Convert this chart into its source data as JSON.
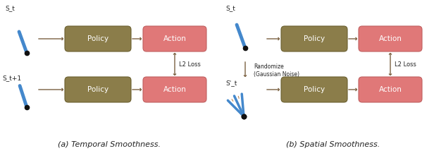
{
  "fig_width": 6.16,
  "fig_height": 2.24,
  "dpi": 100,
  "bg_color": "#ffffff",
  "policy_box_color": "#8B7D4A",
  "action_box_color": "#E07878",
  "arrow_color": "#7A6040",
  "text_color": "#222222",
  "box_edge_color": "#6B6030",
  "action_edge_color": "#C06060",
  "subtitle_a": "(a) Temporal Smoothness.",
  "subtitle_b": "(b) Spatial Smoothness.",
  "label_st_a": "S_t",
  "label_st1_a": "S_t+1",
  "label_st_b": "S_t",
  "label_spt_b": "S'_t",
  "label_policy": "Policy",
  "label_action": "Action",
  "label_l2_a": "L2 Loss",
  "label_l2_b": "L2 Loss",
  "label_randomize": "Randomize\n(Gaussian Noise)",
  "stick_color": "#4488CC",
  "ball_color": "#111111"
}
